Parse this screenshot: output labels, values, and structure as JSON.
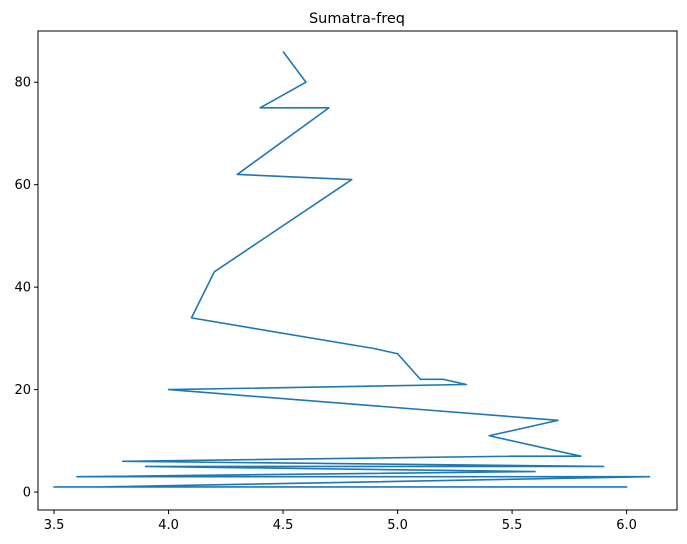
{
  "chart_data": {
    "type": "line",
    "title": "Sumatra-freq",
    "xlabel": "",
    "ylabel": "",
    "xlim": [
      3.43,
      6.22
    ],
    "ylim": [
      -3.5,
      90
    ],
    "xticks": [
      3.5,
      4.0,
      4.5,
      5.0,
      5.5,
      6.0
    ],
    "xtick_labels": [
      "3.5",
      "4.0",
      "4.5",
      "5.0",
      "5.5",
      "6.0"
    ],
    "yticks": [
      0,
      20,
      40,
      60,
      80
    ],
    "ytick_labels": [
      "0",
      "20",
      "40",
      "60",
      "80"
    ],
    "grid": false,
    "legend": "none",
    "series": [
      {
        "color": "#1f77b4",
        "x": [
          4.5,
          4.6,
          4.4,
          4.7,
          4.3,
          4.8,
          4.2,
          4.1,
          4.9,
          5.0,
          5.1,
          5.2,
          5.3,
          4.0,
          5.7,
          5.4,
          5.8,
          5.5,
          3.8,
          5.9,
          3.9,
          5.6,
          3.6,
          6.1,
          3.7,
          6.0,
          3.5,
          6.0
        ],
        "y": [
          86,
          80,
          75,
          75,
          62,
          61,
          43,
          34,
          28,
          27,
          22,
          22,
          21,
          20,
          14,
          11,
          7,
          7,
          6,
          5,
          5,
          4,
          3,
          3,
          1,
          1,
          1,
          1
        ]
      }
    ]
  }
}
